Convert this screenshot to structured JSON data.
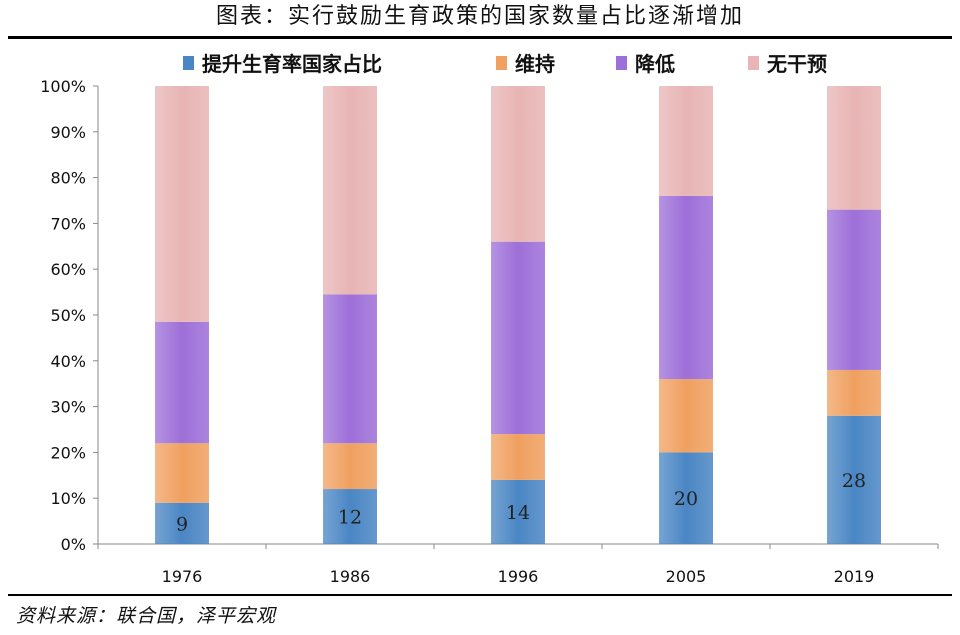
{
  "title": "图表：实行鼓励生育政策的国家数量占比逐渐增加",
  "source": "资料来源：联合国，泽平宏观",
  "chart_data": {
    "type": "bar",
    "stacked": true,
    "categories": [
      "1976",
      "1986",
      "1996",
      "2005",
      "2019"
    ],
    "series": [
      {
        "name": "提升生育率国家占比",
        "values": [
          9,
          12,
          14,
          20,
          28
        ],
        "color": "#4a86c4"
      },
      {
        "name": "维持",
        "values": [
          13,
          10,
          10,
          16,
          10
        ],
        "color": "#f0a060"
      },
      {
        "name": "降低",
        "values": [
          26.5,
          32.5,
          42,
          40,
          35
        ],
        "color": "#9d6fd8"
      },
      {
        "name": "无干预",
        "values": [
          51.5,
          45.5,
          34,
          24,
          27
        ],
        "color": "#e8b4b4"
      }
    ],
    "data_labels": [
      "9",
      "12",
      "14",
      "20",
      "28"
    ],
    "yticks": [
      "0%",
      "10%",
      "20%",
      "30%",
      "40%",
      "50%",
      "60%",
      "70%",
      "80%",
      "90%",
      "100%"
    ],
    "ylim": [
      0,
      100
    ],
    "legend_position": "top",
    "grid": false
  }
}
